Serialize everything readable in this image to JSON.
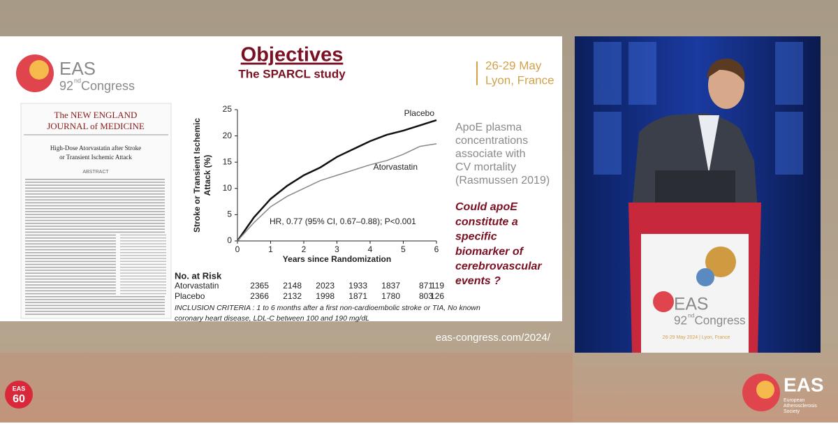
{
  "slide": {
    "logo": {
      "name": "EAS",
      "number": "92",
      "suffix": "nd",
      "word": "Congress"
    },
    "title": "Objectives",
    "subtitle": "The SPARCL study",
    "dates": "26-29 May",
    "place": "Lyon, France",
    "journal": {
      "masthead_top": "The NEW ENGLAND",
      "masthead_bottom": "JOURNAL of MEDICINE",
      "article_title": [
        "High-Dose Atorvastatin after Stroke",
        "or Transient Ischemic Attack"
      ],
      "section": "ABSTRACT"
    },
    "finding": [
      "ApoE plasma",
      "concentrations",
      "associate with",
      "CV mortality",
      "(Rasmussen 2019)"
    ],
    "question": [
      "Could apoE",
      "constitute a",
      "specific",
      "biomarker of",
      "cerebrovascular",
      "events ?"
    ],
    "at_risk": {
      "title": "No. at Risk",
      "rows": [
        {
          "name": "Atorvastatin",
          "values": [
            2365,
            2148,
            2023,
            1933,
            1837,
            871,
            119
          ]
        },
        {
          "name": "Placebo",
          "values": [
            2366,
            2132,
            1998,
            1871,
            1780,
            803,
            126
          ]
        }
      ]
    },
    "inclusion": [
      "INCLUSION CRITERIA : 1 to 6 months after a first non-cardioembolic stroke or TIA, No known",
      "coronary heart disease, LDL-C between 100 and 190 mg/dL"
    ]
  },
  "chart_data": {
    "type": "line",
    "x_label": "Years since Randomization",
    "y_label": [
      "Stroke or Transient Ischemic",
      "Attack (%)"
    ],
    "annotation": "HR, 0.77 (95% CI, 0.67–0.88); P<0.001",
    "x": [
      0,
      0.5,
      1,
      1.5,
      2,
      2.5,
      3,
      3.5,
      4,
      4.5,
      5,
      5.5,
      6
    ],
    "series": [
      {
        "name": "Placebo",
        "color": "#111111",
        "values": [
          0,
          4.5,
          8,
          10.5,
          12.5,
          14,
          16,
          17.5,
          19,
          20.2,
          21,
          22,
          23
        ]
      },
      {
        "name": "Atorvastatin",
        "color": "#888888",
        "values": [
          0,
          3.5,
          6.5,
          8.5,
          10,
          11.5,
          12.5,
          13.5,
          14.5,
          15.3,
          16.5,
          18,
          18.5
        ]
      }
    ],
    "xlim": [
      0,
      6
    ],
    "xticks": [
      0,
      1,
      2,
      3,
      4,
      5,
      6
    ],
    "ylim": [
      0,
      25
    ],
    "yticks": [
      0,
      5,
      10,
      15,
      20,
      25
    ],
    "grid": false
  },
  "footer": {
    "url": "eas-congress.com/2024/"
  },
  "video": {
    "podium": {
      "name": "EAS",
      "number": "92",
      "suffix": "nd",
      "word": "Congress",
      "line": "26-29 May 2024 | Lyon, France"
    }
  },
  "branding": {
    "left": {
      "name": "EAS",
      "number": "60"
    },
    "right": {
      "name": "EAS",
      "lines": [
        "European",
        "Atherosclerosis",
        "Society"
      ]
    }
  }
}
